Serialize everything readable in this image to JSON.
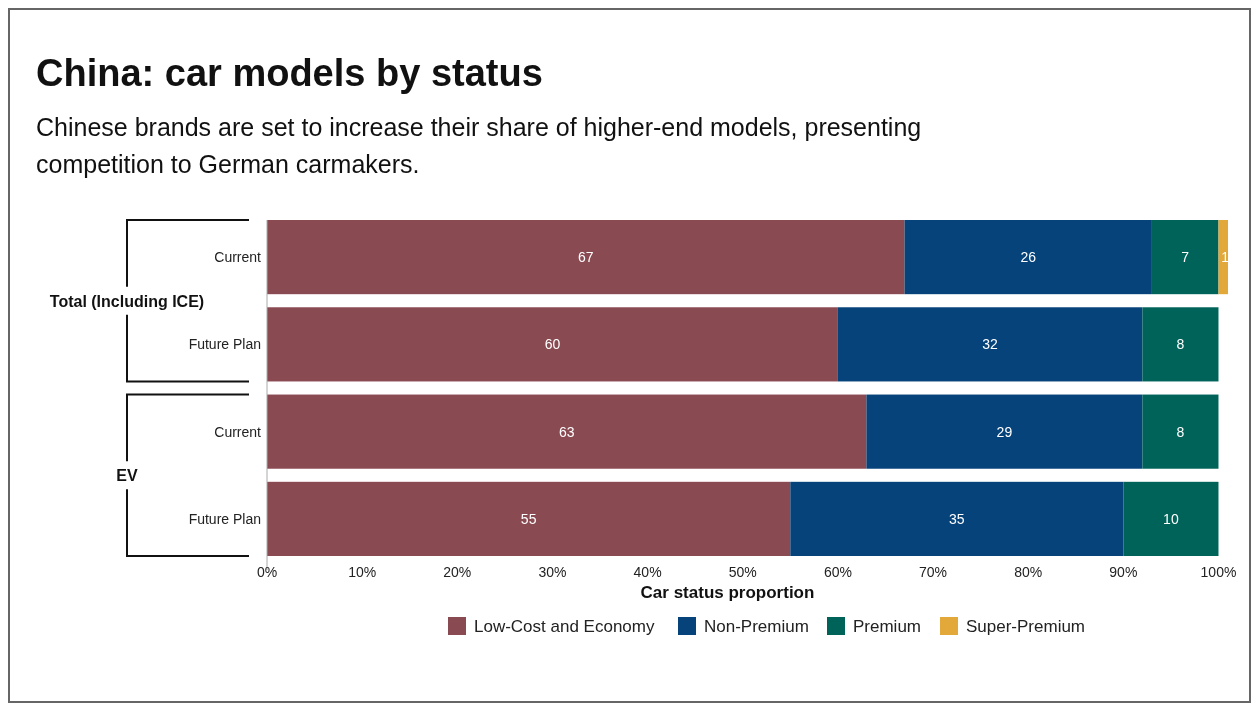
{
  "chart_data": {
    "type": "bar",
    "orientation": "horizontal",
    "stacked": true,
    "data_labels": true,
    "title": "China: car models by status",
    "subtitle": "Chinese brands are set to increase their share of higher-end models, presenting competition to German carmakers.",
    "xlabel": "Car status proportion",
    "categories": [
      "Current",
      "Future Plan",
      "Current",
      "Future Plan"
    ],
    "annotations": [
      "Total (Including ICE)",
      "EV"
    ],
    "series": [
      {
        "name": "Low-Cost and Economy",
        "color": "#8a4a52",
        "values": [
          67,
          60,
          63,
          55
        ]
      },
      {
        "name": "Non-Premium",
        "color": "#05437a",
        "values": [
          26,
          32,
          29,
          35
        ]
      },
      {
        "name": "Premium",
        "color": "#00635a",
        "values": [
          7,
          8,
          8,
          10
        ]
      },
      {
        "name": "Super-Premium",
        "color": "#e2a93a",
        "values": [
          1,
          null,
          null,
          null
        ]
      }
    ],
    "xlim": [
      0,
      101
    ],
    "xticks": [
      {
        "value": 0,
        "label": "0%"
      },
      {
        "value": 10,
        "label": "10%"
      },
      {
        "value": 20,
        "label": "20%"
      },
      {
        "value": 30,
        "label": "30%"
      },
      {
        "value": 40,
        "label": "40%"
      },
      {
        "value": 50,
        "label": "50%"
      },
      {
        "value": 60,
        "label": "60%"
      },
      {
        "value": 70,
        "label": "70%"
      },
      {
        "value": 80,
        "label": "80%"
      },
      {
        "value": 90,
        "label": "90%"
      },
      {
        "value": 100,
        "label": "100%"
      }
    ],
    "legend": "bottom"
  }
}
